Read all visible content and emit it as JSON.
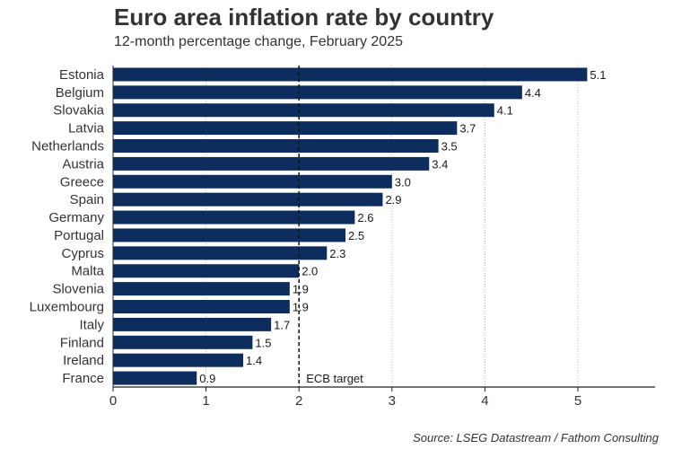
{
  "title": "Euro area inflation rate by country",
  "subtitle": "12-month percentage change, February 2025",
  "source": "Source: LSEG Datastream / Fathom Consulting",
  "chart_data": {
    "type": "bar",
    "orientation": "horizontal",
    "categories": [
      "Estonia",
      "Belgium",
      "Slovakia",
      "Latvia",
      "Netherlands",
      "Austria",
      "Greece",
      "Spain",
      "Germany",
      "Portugal",
      "Cyprus",
      "Malta",
      "Slovenia",
      "Luxembourg",
      "Italy",
      "Finland",
      "Ireland",
      "France"
    ],
    "values": [
      5.1,
      4.4,
      4.1,
      3.7,
      3.5,
      3.4,
      3.0,
      2.9,
      2.6,
      2.5,
      2.3,
      2.0,
      1.9,
      1.9,
      1.7,
      1.5,
      1.4,
      0.9
    ],
    "value_labels": [
      "5.1",
      "4.4",
      "4.1",
      "3.7",
      "3.5",
      "3.4",
      "3.0",
      "2.9",
      "2.6",
      "2.5",
      "2.3",
      "2.0",
      "1.9",
      "1.9",
      "1.7",
      "1.5",
      "1.4",
      "0.9"
    ],
    "xlim": [
      0,
      5.8
    ],
    "xticks": [
      "0",
      "1",
      "2",
      "3",
      "4",
      "5"
    ],
    "grid": "vertical",
    "reference_line": {
      "value": 2,
      "label": "ECB target",
      "style": "dashed"
    },
    "bar_color": "#0d2d5e"
  }
}
